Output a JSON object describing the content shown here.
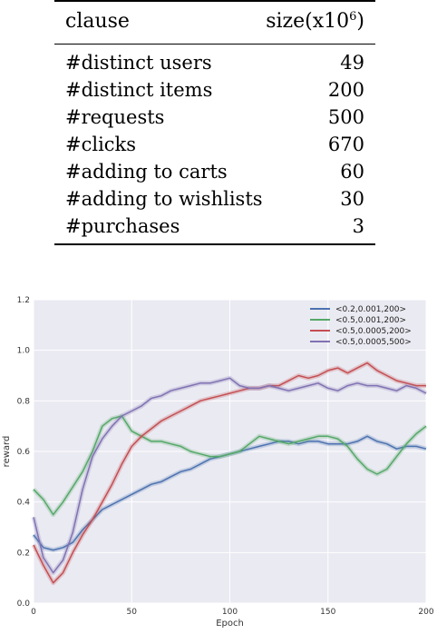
{
  "table": {
    "header": {
      "col1": "clause",
      "col2_base": "size(x10",
      "col2_exp": "6",
      "col2_close": ")"
    },
    "rows": [
      {
        "label": "#distinct users",
        "value": "49"
      },
      {
        "label": "#distinct items",
        "value": "200"
      },
      {
        "label": "#requests",
        "value": "500"
      },
      {
        "label": "#clicks",
        "value": "670"
      },
      {
        "label": "#adding to carts",
        "value": "60"
      },
      {
        "label": "#adding to wishlists",
        "value": "30"
      },
      {
        "label": "#purchases",
        "value": "3"
      }
    ]
  },
  "chart_data": {
    "type": "line",
    "title": "",
    "xlabel": "Epoch",
    "ylabel": "reward",
    "xlim": [
      0,
      200
    ],
    "ylim": [
      0.0,
      1.2
    ],
    "xticks": [
      0,
      50,
      100,
      150,
      200
    ],
    "xtick_labels": [
      "0",
      "50",
      "100",
      "150",
      "200"
    ],
    "yticks": [
      0.0,
      0.2,
      0.4,
      0.6,
      0.8,
      1.0,
      1.2
    ],
    "ytick_labels": [
      "0.0",
      "0.2",
      "0.4",
      "0.6",
      "0.8",
      "1.0",
      "1.2"
    ],
    "grid": true,
    "background": "#eaeaf2",
    "legend_position": "top-right",
    "series": [
      {
        "name": "<0.2,0.001,200>",
        "color": "#4c72b0",
        "x": [
          0,
          5,
          10,
          15,
          20,
          25,
          30,
          35,
          40,
          45,
          50,
          55,
          60,
          65,
          70,
          75,
          80,
          85,
          90,
          95,
          100,
          105,
          110,
          115,
          120,
          125,
          130,
          135,
          140,
          145,
          150,
          155,
          160,
          165,
          170,
          175,
          180,
          185,
          190,
          195,
          200
        ],
        "y": [
          0.27,
          0.22,
          0.21,
          0.22,
          0.24,
          0.29,
          0.33,
          0.37,
          0.39,
          0.41,
          0.43,
          0.45,
          0.47,
          0.48,
          0.5,
          0.52,
          0.53,
          0.55,
          0.57,
          0.58,
          0.59,
          0.6,
          0.61,
          0.62,
          0.63,
          0.64,
          0.64,
          0.63,
          0.64,
          0.64,
          0.63,
          0.63,
          0.63,
          0.64,
          0.66,
          0.64,
          0.63,
          0.61,
          0.62,
          0.62,
          0.61
        ]
      },
      {
        "name": "<0.5,0.001,200>",
        "color": "#55a868",
        "x": [
          0,
          5,
          10,
          15,
          20,
          25,
          30,
          35,
          40,
          45,
          50,
          55,
          60,
          65,
          70,
          75,
          80,
          85,
          90,
          95,
          100,
          105,
          110,
          115,
          120,
          125,
          130,
          135,
          140,
          145,
          150,
          155,
          160,
          165,
          170,
          175,
          180,
          185,
          190,
          195,
          200
        ],
        "y": [
          0.45,
          0.41,
          0.35,
          0.4,
          0.46,
          0.52,
          0.6,
          0.7,
          0.73,
          0.74,
          0.68,
          0.66,
          0.64,
          0.64,
          0.63,
          0.62,
          0.6,
          0.59,
          0.58,
          0.58,
          0.59,
          0.6,
          0.63,
          0.66,
          0.65,
          0.64,
          0.63,
          0.64,
          0.65,
          0.66,
          0.66,
          0.65,
          0.62,
          0.57,
          0.53,
          0.51,
          0.53,
          0.58,
          0.63,
          0.67,
          0.7
        ]
      },
      {
        "name": "<0.5,0.0005,200>",
        "color": "#c44e52",
        "x": [
          0,
          5,
          10,
          15,
          20,
          25,
          30,
          35,
          40,
          45,
          50,
          55,
          60,
          65,
          70,
          75,
          80,
          85,
          90,
          95,
          100,
          105,
          110,
          115,
          120,
          125,
          130,
          135,
          140,
          145,
          150,
          155,
          160,
          165,
          170,
          175,
          180,
          185,
          190,
          195,
          200
        ],
        "y": [
          0.23,
          0.15,
          0.08,
          0.12,
          0.2,
          0.27,
          0.33,
          0.4,
          0.47,
          0.55,
          0.62,
          0.66,
          0.69,
          0.72,
          0.74,
          0.76,
          0.78,
          0.8,
          0.81,
          0.82,
          0.83,
          0.84,
          0.85,
          0.85,
          0.86,
          0.86,
          0.88,
          0.9,
          0.89,
          0.9,
          0.92,
          0.93,
          0.91,
          0.93,
          0.95,
          0.92,
          0.9,
          0.88,
          0.87,
          0.86,
          0.86
        ]
      },
      {
        "name": "<0.5,0.0005,500>",
        "color": "#8172b2",
        "x": [
          0,
          5,
          10,
          15,
          20,
          25,
          30,
          35,
          40,
          45,
          50,
          55,
          60,
          65,
          70,
          75,
          80,
          85,
          90,
          95,
          100,
          105,
          110,
          115,
          120,
          125,
          130,
          135,
          140,
          145,
          150,
          155,
          160,
          165,
          170,
          175,
          180,
          185,
          190,
          195,
          200
        ],
        "y": [
          0.34,
          0.18,
          0.12,
          0.17,
          0.28,
          0.45,
          0.58,
          0.65,
          0.7,
          0.74,
          0.76,
          0.78,
          0.81,
          0.82,
          0.84,
          0.85,
          0.86,
          0.87,
          0.87,
          0.88,
          0.89,
          0.86,
          0.85,
          0.85,
          0.86,
          0.85,
          0.84,
          0.85,
          0.86,
          0.87,
          0.85,
          0.84,
          0.86,
          0.87,
          0.86,
          0.86,
          0.85,
          0.84,
          0.86,
          0.85,
          0.83
        ]
      }
    ]
  }
}
